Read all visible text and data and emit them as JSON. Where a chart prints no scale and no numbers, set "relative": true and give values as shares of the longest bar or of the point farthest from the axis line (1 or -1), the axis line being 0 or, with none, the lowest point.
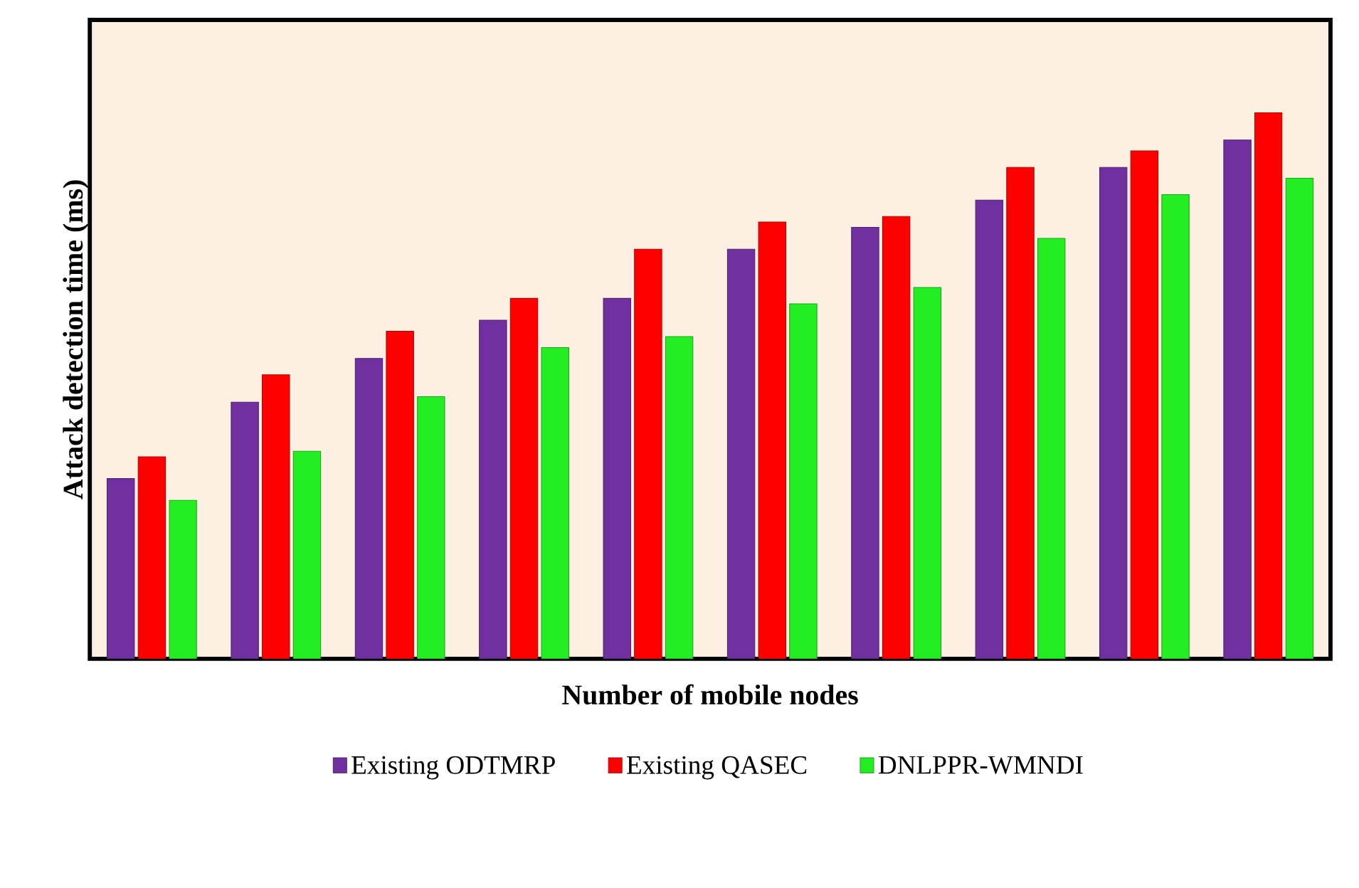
{
  "chart_data": {
    "type": "bar",
    "relative": true,
    "xlabel": "Number of mobile nodes",
    "ylabel": "Attack detection time (ms)",
    "categories": [
      null,
      null,
      null,
      null,
      null,
      null,
      null,
      null,
      null,
      null
    ],
    "series": [
      {
        "name": "Existing ODTMRP",
        "color": "#7030a0",
        "values": [
          0.33,
          0.47,
          0.55,
          0.62,
          0.66,
          0.75,
          0.79,
          0.84,
          0.9,
          0.95
        ]
      },
      {
        "name": "Existing QASEC",
        "color": "#ff0000",
        "values": [
          0.37,
          0.52,
          0.6,
          0.66,
          0.75,
          0.8,
          0.81,
          0.9,
          0.93,
          1
        ]
      },
      {
        "name": "DNLPPR-WMNDI",
        "color": "#22ee22",
        "values": [
          0.29,
          0.38,
          0.48,
          0.57,
          0.59,
          0.65,
          0.68,
          0.77,
          0.85,
          0.88
        ]
      }
    ],
    "legend": "bottom"
  }
}
